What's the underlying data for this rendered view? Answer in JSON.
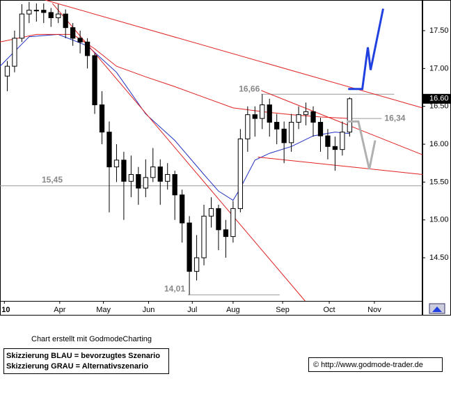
{
  "chart_data": {
    "type": "candlestick",
    "x": [
      55,
      60,
      65,
      70,
      75,
      80,
      85,
      90,
      95,
      100,
      105,
      110,
      115,
      120,
      125,
      130,
      135,
      140,
      145,
      150,
      155,
      160,
      165,
      170,
      175,
      180,
      185,
      190,
      195,
      200,
      205,
      210,
      215,
      220,
      225,
      230,
      235,
      240,
      245,
      250,
      255,
      260,
      265,
      270,
      275,
      280,
      285,
      290
    ],
    "open": [
      16.9,
      17.03,
      17.4,
      17.72,
      17.77,
      17.77,
      17.74,
      17.67,
      17.72,
      17.54,
      17.4,
      17.35,
      17.17,
      16.52,
      16.16,
      15.7,
      15.79,
      15.51,
      15.6,
      15.42,
      15.56,
      15.7,
      15.51,
      15.6,
      15.33,
      14.96,
      14.32,
      14.5,
      15.05,
      15.15,
      14.87,
      14.78,
      15.15,
      16.07,
      16.39,
      16.34,
      16.52,
      16.29,
      16.2,
      16.02,
      16.29,
      16.39,
      16.43,
      16.29,
      16.11,
      15.97,
      15.93,
      16.16
    ],
    "high": [
      17.1,
      17.5,
      17.85,
      17.88,
      17.86,
      17.86,
      17.8,
      17.85,
      17.78,
      17.6,
      17.5,
      17.4,
      17.2,
      16.7,
      16.3,
      16.0,
      15.9,
      15.85,
      15.7,
      15.8,
      15.95,
      15.8,
      15.75,
      15.65,
      15.4,
      15.05,
      14.8,
      15.2,
      15.3,
      15.2,
      15.0,
      15.25,
      16.2,
      16.5,
      16.5,
      16.66,
      16.6,
      16.4,
      16.3,
      16.4,
      16.5,
      16.55,
      16.5,
      16.35,
      16.2,
      16.1,
      16.3,
      16.62
    ],
    "low": [
      16.7,
      16.95,
      17.35,
      17.6,
      17.62,
      17.6,
      17.55,
      17.6,
      17.4,
      17.3,
      17.2,
      17.0,
      16.4,
      16.0,
      15.1,
      15.5,
      15.0,
      15.3,
      15.2,
      15.3,
      15.5,
      15.2,
      15.4,
      15.0,
      14.7,
      14.01,
      14.2,
      14.4,
      14.9,
      14.6,
      14.5,
      14.7,
      15.1,
      15.9,
      16.1,
      16.2,
      16.1,
      16.0,
      15.75,
      15.9,
      16.2,
      16.25,
      16.1,
      15.9,
      15.8,
      15.65,
      15.85,
      16.1
    ],
    "close": [
      17.03,
      17.4,
      17.72,
      17.77,
      17.77,
      17.74,
      17.67,
      17.72,
      17.54,
      17.4,
      17.35,
      17.17,
      16.52,
      16.16,
      15.7,
      15.79,
      15.51,
      15.6,
      15.42,
      15.56,
      15.7,
      15.51,
      15.6,
      15.33,
      14.96,
      14.32,
      14.5,
      15.05,
      15.15,
      14.87,
      14.78,
      15.15,
      16.07,
      16.39,
      16.34,
      16.52,
      16.29,
      16.2,
      16.02,
      16.29,
      16.39,
      16.43,
      16.29,
      16.11,
      15.97,
      15.93,
      16.16,
      16.6
    ],
    "color": "#000000",
    "xlim": [
      50,
      340
    ],
    "ylim": [
      13.93,
      17.905
    ],
    "xticks": [
      {
        "value": 53,
        "label": "10"
      },
      {
        "value": 91,
        "label": "Apr"
      },
      {
        "value": 121,
        "label": "May"
      },
      {
        "value": 152,
        "label": "Jun"
      },
      {
        "value": 182,
        "label": "Jul"
      },
      {
        "value": 210,
        "label": "Aug"
      },
      {
        "value": 244,
        "label": "Sep"
      },
      {
        "value": 276,
        "label": "Oct"
      },
      {
        "value": 307,
        "label": "Nov"
      }
    ],
    "yticks": [
      {
        "value": 14.5,
        "label": "14.50"
      },
      {
        "value": 15,
        "label": "15.00"
      },
      {
        "value": 15.5,
        "label": "15.50"
      },
      {
        "value": 16,
        "label": "16.00"
      },
      {
        "value": 16.5,
        "label": "16.50"
      },
      {
        "value": 17,
        "label": "17.00"
      },
      {
        "value": 17.5,
        "label": "17.50"
      }
    ],
    "overlays": [
      {
        "color": "#2030c0",
        "x": [
          50,
          70,
          90,
          110,
          130,
          150,
          170,
          190,
          200,
          210,
          215,
          225,
          235,
          250,
          265,
          280,
          290
        ],
        "values": [
          17.03,
          17.42,
          17.45,
          17.3,
          16.95,
          16.4,
          16.05,
          15.6,
          15.38,
          15.26,
          15.42,
          15.79,
          15.88,
          15.97,
          16.11,
          16.16,
          16.14
        ]
      },
      {
        "color": "#e02020",
        "x": [
          50,
          75,
          100,
          115,
          130,
          150,
          170,
          190,
          210,
          230,
          250,
          270,
          290
        ],
        "values": [
          17.35,
          17.45,
          17.45,
          17.26,
          17.03,
          16.89,
          16.76,
          16.62,
          16.48,
          16.43,
          16.39,
          16.36,
          16.34
        ]
      }
    ],
    "trendlines": [
      {
        "color": "#e02020",
        "x": [
          81,
          340
        ],
        "values": [
          17.905,
          16.48
        ]
      },
      {
        "color": "#e02020",
        "x": [
          86,
          259.4
        ],
        "values": [
          17.86,
          13.93
        ]
      },
      {
        "color": "#e02020",
        "x": [
          229.3,
          340
        ],
        "values": [
          16.71,
          15.86
        ]
      },
      {
        "color": "#e02020",
        "x": [
          227,
          340
        ],
        "values": [
          15.83,
          15.6
        ]
      }
    ],
    "levels": [
      {
        "value": 15.45,
        "label": "15,45",
        "x": [
          50,
          340
        ],
        "color": "#999999"
      },
      {
        "value": 16.66,
        "label": "16,66",
        "x": [
          229.3,
          320.6
        ],
        "color": "#999999"
      },
      {
        "value": 16.34,
        "label": "16,34",
        "x": [
          289,
          312
        ],
        "color": "#999999"
      },
      {
        "value": 14.01,
        "label": "14,01",
        "x": [
          179,
          242
        ],
        "color": "#999999"
      }
    ],
    "scenarios": [
      {
        "color": "#2040e0",
        "x": [
          289,
          298.7,
          302.5,
          304.4,
          313
        ],
        "values": [
          16.73,
          16.73,
          17.28,
          16.98,
          17.79
        ]
      },
      {
        "color": "#b0b0b0",
        "x": [
          288,
          296,
          303.5,
          307.5
        ],
        "values": [
          16.3,
          16.3,
          15.67,
          16.05
        ]
      }
    ],
    "last_price": {
      "value": 16.6,
      "label": "16.60"
    }
  },
  "footer": {
    "credit": "Chart erstellt mit GodmodeCharting",
    "legend": [
      "Skizzierung BLAU = bevorzugtes Szenario",
      "Skizzierung GRAU = Alternativszenario"
    ],
    "url": "© http://www.godmode-trader.de"
  }
}
